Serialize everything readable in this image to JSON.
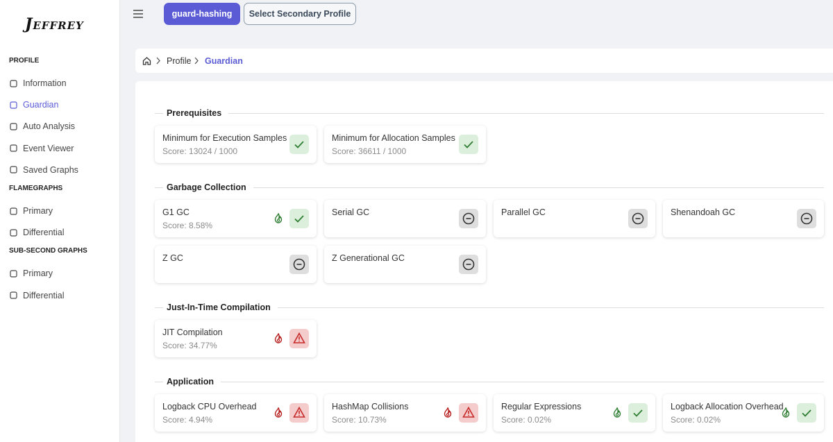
{
  "sidebar": {
    "logo": "Jeffrey",
    "groups": [
      {
        "title": "PROFILE",
        "items": [
          "Information",
          "Guardian",
          "Auto Analysis",
          "Event Viewer",
          "Saved Graphs"
        ]
      },
      {
        "title": "FLAMEGRAPHS",
        "items": [
          "Primary",
          "Differential"
        ]
      },
      {
        "title": "SUB-SECOND GRAPHS",
        "items": [
          "Primary",
          "Differential"
        ]
      }
    ]
  },
  "header": {
    "profile_button": "guard-hashing",
    "secondary_button": "Select Secondary Profile"
  },
  "breadcrumb": [
    "Profile",
    "Guardian"
  ],
  "sections": [
    {
      "title": "Prerequisites",
      "checks": [
        {
          "name": "Minimum for Execution Samples",
          "score": "Score: 13024 / 1000",
          "status": "ok"
        },
        {
          "name": "Minimum for Allocation Samples",
          "score": "Score: 36611 / 1000",
          "status": "ok"
        }
      ]
    },
    {
      "title": "Garbage Collection",
      "checks": [
        {
          "name": "G1 GC",
          "score": "Score: 8.58%",
          "status": "ok",
          "impact": "low"
        },
        {
          "name": "Serial GC",
          "status": "na"
        },
        {
          "name": "Parallel GC",
          "status": "na"
        },
        {
          "name": "Shenandoah GC",
          "status": "na"
        },
        {
          "name": "Z GC",
          "status": "na"
        },
        {
          "name": "Z Generational GC",
          "status": "na"
        }
      ]
    },
    {
      "title": "Just-In-Time Compilation",
      "checks": [
        {
          "name": "JIT Compilation",
          "score": "Score: 34.77%",
          "status": "warn",
          "impact": "high"
        }
      ]
    },
    {
      "title": "Application",
      "checks": [
        {
          "name": "Logback CPU Overhead",
          "score": "Score: 4.94%",
          "status": "warn",
          "impact": "high"
        },
        {
          "name": "HashMap Collisions",
          "score": "Score: 10.73%",
          "status": "warn",
          "impact": "high"
        },
        {
          "name": "Regular Expressions",
          "score": "Score: 0.02%",
          "status": "ok",
          "impact": "low"
        },
        {
          "name": "Logback Allocation Overhead",
          "score": "Score: 0.02%",
          "status": "ok",
          "impact": "low"
        }
      ]
    }
  ]
}
